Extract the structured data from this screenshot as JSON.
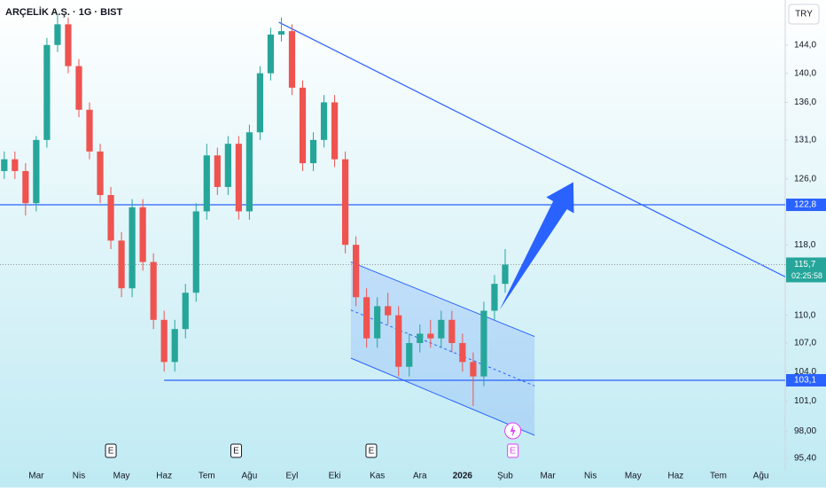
{
  "chart_data": {
    "type": "candlestick",
    "title": "ARÇELİK A.Ş. · 1G · BIST",
    "currency": "TRY",
    "x": [
      2.25,
      2.5,
      2.75,
      3.0,
      3.25,
      3.5,
      3.75,
      4.0,
      4.25,
      4.5,
      4.75,
      5.0,
      5.25,
      5.5,
      5.75,
      6.0,
      6.25,
      6.5,
      6.75,
      7.0,
      7.25,
      7.5,
      7.75,
      8.0,
      8.25,
      8.5,
      8.75,
      9.0,
      9.25,
      9.5,
      9.75,
      10.0,
      10.25,
      10.5,
      10.75,
      11.0,
      11.25,
      11.5,
      11.75,
      12.0,
      12.25,
      12.5,
      12.75,
      13.0,
      13.25,
      13.5,
      13.75,
      14.0
    ],
    "open": [
      127.0,
      128.5,
      127.0,
      123.0,
      131.0,
      144.0,
      147.0,
      141.0,
      135.0,
      129.5,
      124.0,
      118.5,
      113.0,
      122.5,
      116.0,
      109.5,
      105.0,
      108.5,
      112.5,
      122.0,
      129.0,
      125.0,
      130.5,
      122.0,
      132.0,
      140.0,
      145.5,
      146.0,
      138.0,
      128.0,
      131.0,
      136.0,
      128.5,
      118.0,
      112.0,
      107.5,
      111.0,
      110.0,
      104.5,
      107.0,
      108.0,
      107.5,
      109.5,
      107.0,
      105.0,
      103.5,
      110.5,
      113.5
    ],
    "high": [
      129.5,
      129.5,
      128.0,
      131.5,
      145.0,
      148.5,
      148.0,
      142.0,
      136.0,
      130.5,
      125.0,
      119.5,
      123.5,
      123.5,
      117.0,
      110.5,
      109.5,
      113.5,
      123.0,
      130.5,
      130.0,
      131.5,
      131.5,
      133.0,
      141.0,
      146.5,
      148.0,
      147.0,
      139.0,
      132.0,
      137.0,
      137.0,
      129.5,
      119.0,
      113.0,
      112.0,
      112.5,
      111.0,
      108.0,
      109.0,
      109.5,
      110.5,
      110.5,
      108.0,
      106.0,
      111.5,
      114.5,
      117.5
    ],
    "low": [
      126.0,
      126.0,
      121.5,
      122.0,
      130.0,
      143.0,
      140.0,
      134.0,
      128.5,
      123.0,
      117.5,
      112.0,
      112.0,
      115.0,
      108.5,
      104.0,
      104.0,
      107.5,
      111.5,
      121.0,
      124.0,
      124.0,
      121.0,
      121.0,
      131.0,
      139.0,
      144.5,
      137.0,
      127.0,
      127.0,
      130.0,
      127.5,
      117.0,
      111.0,
      106.5,
      106.5,
      109.0,
      103.5,
      103.5,
      106.0,
      106.5,
      106.5,
      106.0,
      104.0,
      100.5,
      102.5,
      109.5,
      112.5
    ],
    "close": [
      128.5,
      127.0,
      123.0,
      131.0,
      144.0,
      147.0,
      141.0,
      135.0,
      129.5,
      124.0,
      118.5,
      113.0,
      122.5,
      116.0,
      109.5,
      105.0,
      108.5,
      112.5,
      122.0,
      129.0,
      125.0,
      130.5,
      122.0,
      132.0,
      140.0,
      145.5,
      146.0,
      138.0,
      128.0,
      131.0,
      136.0,
      128.5,
      118.0,
      112.0,
      107.5,
      111.0,
      110.0,
      104.5,
      107.0,
      108.0,
      107.5,
      109.5,
      107.0,
      105.0,
      103.5,
      110.5,
      113.5,
      115.7
    ],
    "up_color": "#26a69a",
    "down_color": "#ef5350",
    "drawing_color": "#2962ff",
    "xlim": [
      2.15,
      20.57
    ],
    "xticks": [
      {
        "value": 3,
        "label": "Mar"
      },
      {
        "value": 4,
        "label": "Nis"
      },
      {
        "value": 5,
        "label": "May"
      },
      {
        "value": 6,
        "label": "Haz"
      },
      {
        "value": 7,
        "label": "Tem"
      },
      {
        "value": 8,
        "label": "Ağu"
      },
      {
        "value": 9,
        "label": "Eyl"
      },
      {
        "value": 10,
        "label": "Eki"
      },
      {
        "value": 11,
        "label": "Kas"
      },
      {
        "value": 12,
        "label": "Ara"
      },
      {
        "value": 13,
        "label": "2026"
      },
      {
        "value": 14,
        "label": "Şub"
      },
      {
        "value": 15,
        "label": "Mar"
      },
      {
        "value": 16,
        "label": "Nis"
      },
      {
        "value": 17,
        "label": "May"
      },
      {
        "value": 18,
        "label": "Haz"
      },
      {
        "value": 19,
        "label": "Tem"
      },
      {
        "value": 20,
        "label": "Ağu"
      }
    ],
    "ylim": [
      94.3,
      150.6
    ],
    "log_scale": true,
    "yticks": [
      {
        "value": 95.4,
        "label": "95,40"
      },
      {
        "value": 98,
        "label": "98,00"
      },
      {
        "value": 101,
        "label": "101,0"
      },
      {
        "value": 104,
        "label": "104,0"
      },
      {
        "value": 107,
        "label": "107,0"
      },
      {
        "value": 110,
        "label": "110,0"
      },
      {
        "value": 118,
        "label": "118,0"
      },
      {
        "value": 126,
        "label": "126,0"
      },
      {
        "value": 131,
        "label": "131,0"
      },
      {
        "value": 136,
        "label": "136,0"
      },
      {
        "value": 140,
        "label": "140,0"
      },
      {
        "value": 144,
        "label": "144,0"
      }
    ],
    "last_price": {
      "value": 115.7,
      "label": "115,7"
    },
    "countdown": "02:25:58",
    "levels": [
      {
        "value": 122.8,
        "label": "122,8",
        "x_start": 2.15
      },
      {
        "value": 103.1,
        "label": "103,1",
        "x_start": 6.0
      }
    ],
    "trend_line": {
      "x": [
        8.69,
        20.57
      ],
      "y": [
        147.3,
        114.3
      ]
    },
    "channel": {
      "x": [
        10.38,
        14.69
      ],
      "upper": [
        116.0,
        107.7
      ],
      "lower": [
        105.4,
        97.6
      ]
    },
    "arrow": {
      "x": [
        13.87,
        15.6
      ],
      "y": [
        110.6,
        125.6
      ]
    },
    "events": [
      {
        "x": 4.75,
        "label": "E",
        "color": "#131722"
      },
      {
        "x": 7.69,
        "label": "E",
        "color": "#131722"
      },
      {
        "x": 10.86,
        "label": "E",
        "color": "#131722"
      },
      {
        "x": 14.18,
        "label": "E",
        "color": "#e040fb"
      }
    ]
  }
}
